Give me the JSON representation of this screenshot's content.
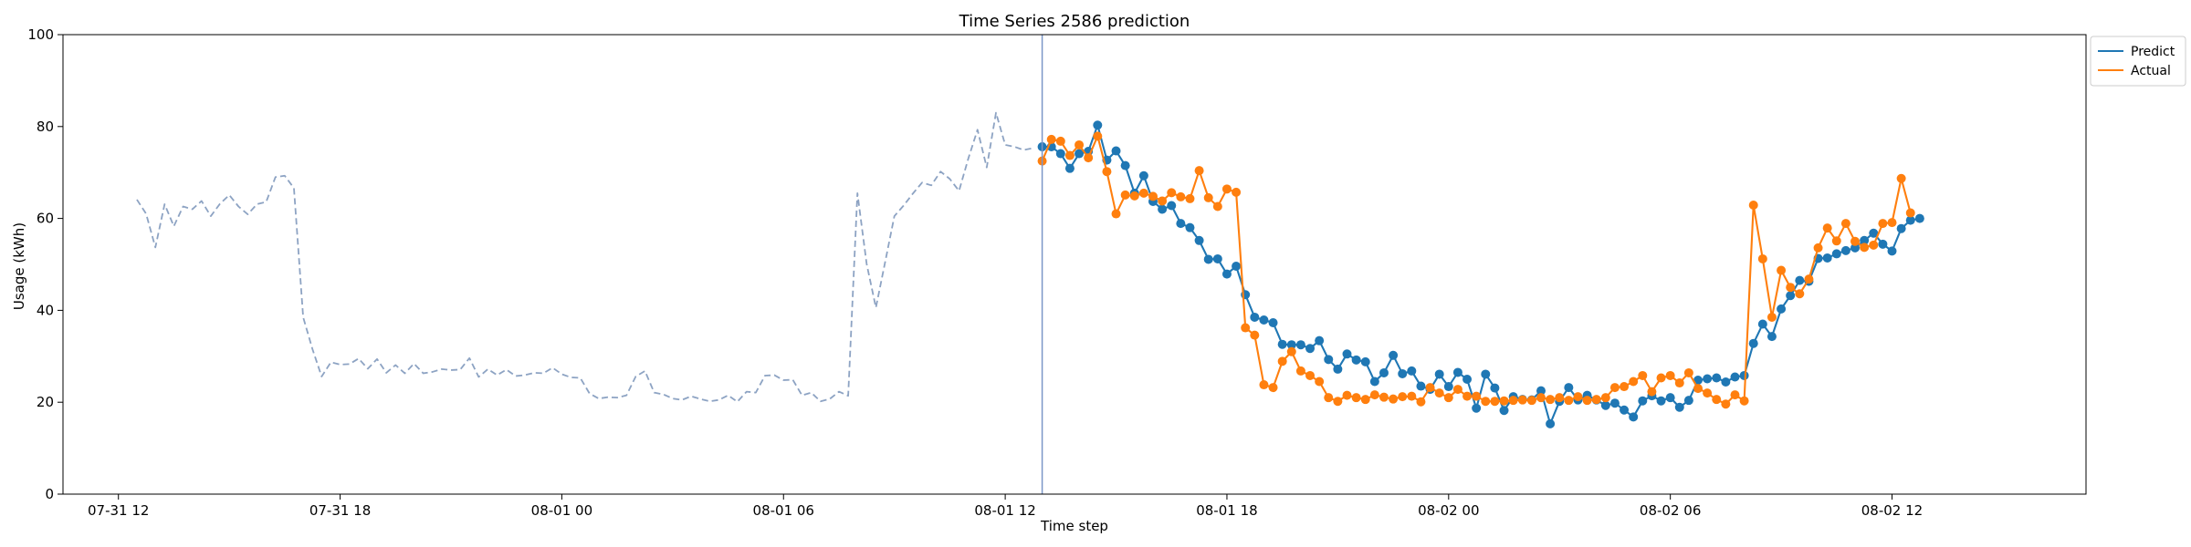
{
  "chart_data": {
    "type": "line",
    "title": "Time Series 2586 prediction",
    "xlabel": "Time step",
    "ylabel": "Usage (kWh)",
    "ylim": [
      0,
      100
    ],
    "x_start": "07-31 12",
    "x_step_hours": 0.25,
    "x_domain_steps": [
      -6,
      213
    ],
    "yticks": [
      0,
      20,
      40,
      60,
      80,
      100
    ],
    "xticks": [
      {
        "label": "07-31 12",
        "step": 0
      },
      {
        "label": "07-31 18",
        "step": 24
      },
      {
        "label": "08-01 00",
        "step": 48
      },
      {
        "label": "08-01 06",
        "step": 72
      },
      {
        "label": "08-01 12",
        "step": 96
      },
      {
        "label": "08-01 18",
        "step": 120
      },
      {
        "label": "08-02 00",
        "step": 144
      },
      {
        "label": "08-02 06",
        "step": 168
      },
      {
        "label": "08-02 12",
        "step": 192
      }
    ],
    "forecast_start_step": 100,
    "grid": false,
    "legend_position": "top-right-outside",
    "series": [
      {
        "name": "",
        "role": "history",
        "color": "#8da3c3",
        "style": "dashed",
        "x_start_step": 2,
        "values": [
          64.1,
          61.0,
          53.7,
          63.1,
          58.3,
          62.6,
          62.0,
          63.8,
          60.5,
          63.2,
          65.1,
          62.6,
          60.9,
          63.1,
          63.6,
          69.0,
          69.3,
          66.6,
          38.5,
          31.6,
          25.6,
          28.7,
          28.2,
          28.3,
          29.5,
          27.3,
          29.4,
          26.4,
          28.1,
          26.3,
          28.4,
          26.3,
          26.6,
          27.2,
          27.0,
          27.1,
          29.6,
          25.5,
          27.2,
          25.9,
          27.1,
          25.7,
          25.9,
          26.4,
          26.3,
          27.5,
          26.1,
          25.4,
          25.3,
          21.9,
          20.8,
          21.1,
          21.0,
          21.5,
          25.6,
          26.8,
          22.1,
          21.7,
          20.8,
          20.5,
          21.3,
          20.7,
          20.2,
          20.5,
          21.5,
          20.1,
          22.3,
          22.1,
          25.8,
          25.9,
          24.8,
          24.9,
          21.5,
          22.1,
          20.2,
          20.7,
          22.3,
          21.4,
          65.5,
          50.1,
          40.6,
          50.5,
          60.5,
          62.8,
          65.4,
          67.8,
          67.2,
          70.2,
          68.6,
          66.0,
          73.0,
          79.3,
          71.1,
          83.0,
          76.0,
          75.6,
          74.9,
          75.3
        ]
      },
      {
        "name": "Predict",
        "role": "prediction",
        "color": "#1f77b4",
        "style": "solid",
        "x_start_step": 100,
        "values": [
          75.6,
          75.6,
          74.1,
          70.9,
          74.1,
          74.6,
          80.3,
          72.7,
          74.7,
          71.5,
          65.5,
          69.3,
          63.7,
          62.0,
          62.8,
          58.9,
          58.0,
          55.2,
          51.1,
          51.2,
          47.9,
          49.6,
          43.4,
          38.5,
          37.9,
          37.3,
          32.6,
          32.5,
          32.5,
          31.7,
          33.4,
          29.3,
          27.2,
          30.5,
          29.2,
          28.8,
          24.5,
          26.4,
          30.2,
          26.2,
          26.8,
          23.5,
          22.8,
          26.1,
          23.4,
          26.5,
          25.0,
          18.7,
          26.1,
          23.1,
          18.2,
          21.2,
          20.6,
          20.5,
          22.5,
          15.3,
          20.2,
          23.2,
          20.5,
          21.5,
          20.5,
          19.3,
          19.8,
          18.3,
          16.8,
          20.3,
          21.4,
          20.3,
          21.0,
          18.9,
          20.4,
          24.8,
          25.1,
          25.3,
          24.4,
          25.5,
          25.8,
          32.8,
          37.0,
          34.3,
          40.3,
          43.2,
          46.5,
          46.3,
          51.3,
          51.4,
          52.3,
          53.0,
          53.6,
          55.2,
          56.8,
          54.4,
          52.9,
          57.8,
          59.6,
          60.0
        ]
      },
      {
        "name": "Actual",
        "role": "actual",
        "color": "#ff7f0e",
        "style": "solid",
        "x_start_step": 100,
        "values": [
          72.5,
          77.2,
          76.8,
          73.7,
          76.0,
          73.2,
          77.9,
          70.2,
          61.0,
          65.1,
          64.9,
          65.5,
          64.8,
          63.8,
          65.6,
          64.7,
          64.3,
          70.4,
          64.5,
          62.6,
          66.4,
          65.7,
          36.2,
          34.6,
          23.8,
          23.2,
          28.9,
          31.0,
          26.8,
          25.8,
          24.5,
          21.0,
          20.2,
          21.5,
          21.0,
          20.6,
          21.6,
          21.1,
          20.7,
          21.2,
          21.3,
          20.1,
          23.2,
          22.0,
          21.0,
          22.8,
          21.3,
          21.3,
          20.2,
          20.2,
          20.3,
          20.4,
          20.5,
          20.4,
          21.0,
          20.6,
          21.0,
          20.4,
          21.2,
          20.4,
          20.6,
          21.0,
          23.2,
          23.4,
          24.5,
          25.8,
          22.3,
          25.3,
          25.8,
          24.2,
          26.4,
          23.0,
          22.0,
          20.6,
          19.6,
          21.6,
          20.3,
          62.9,
          51.2,
          38.5,
          48.7,
          45.0,
          43.6,
          46.8,
          53.6,
          57.9,
          55.1,
          58.9,
          55.0,
          53.7,
          54.2,
          58.9,
          59.1,
          68.7,
          61.2
        ]
      }
    ]
  }
}
